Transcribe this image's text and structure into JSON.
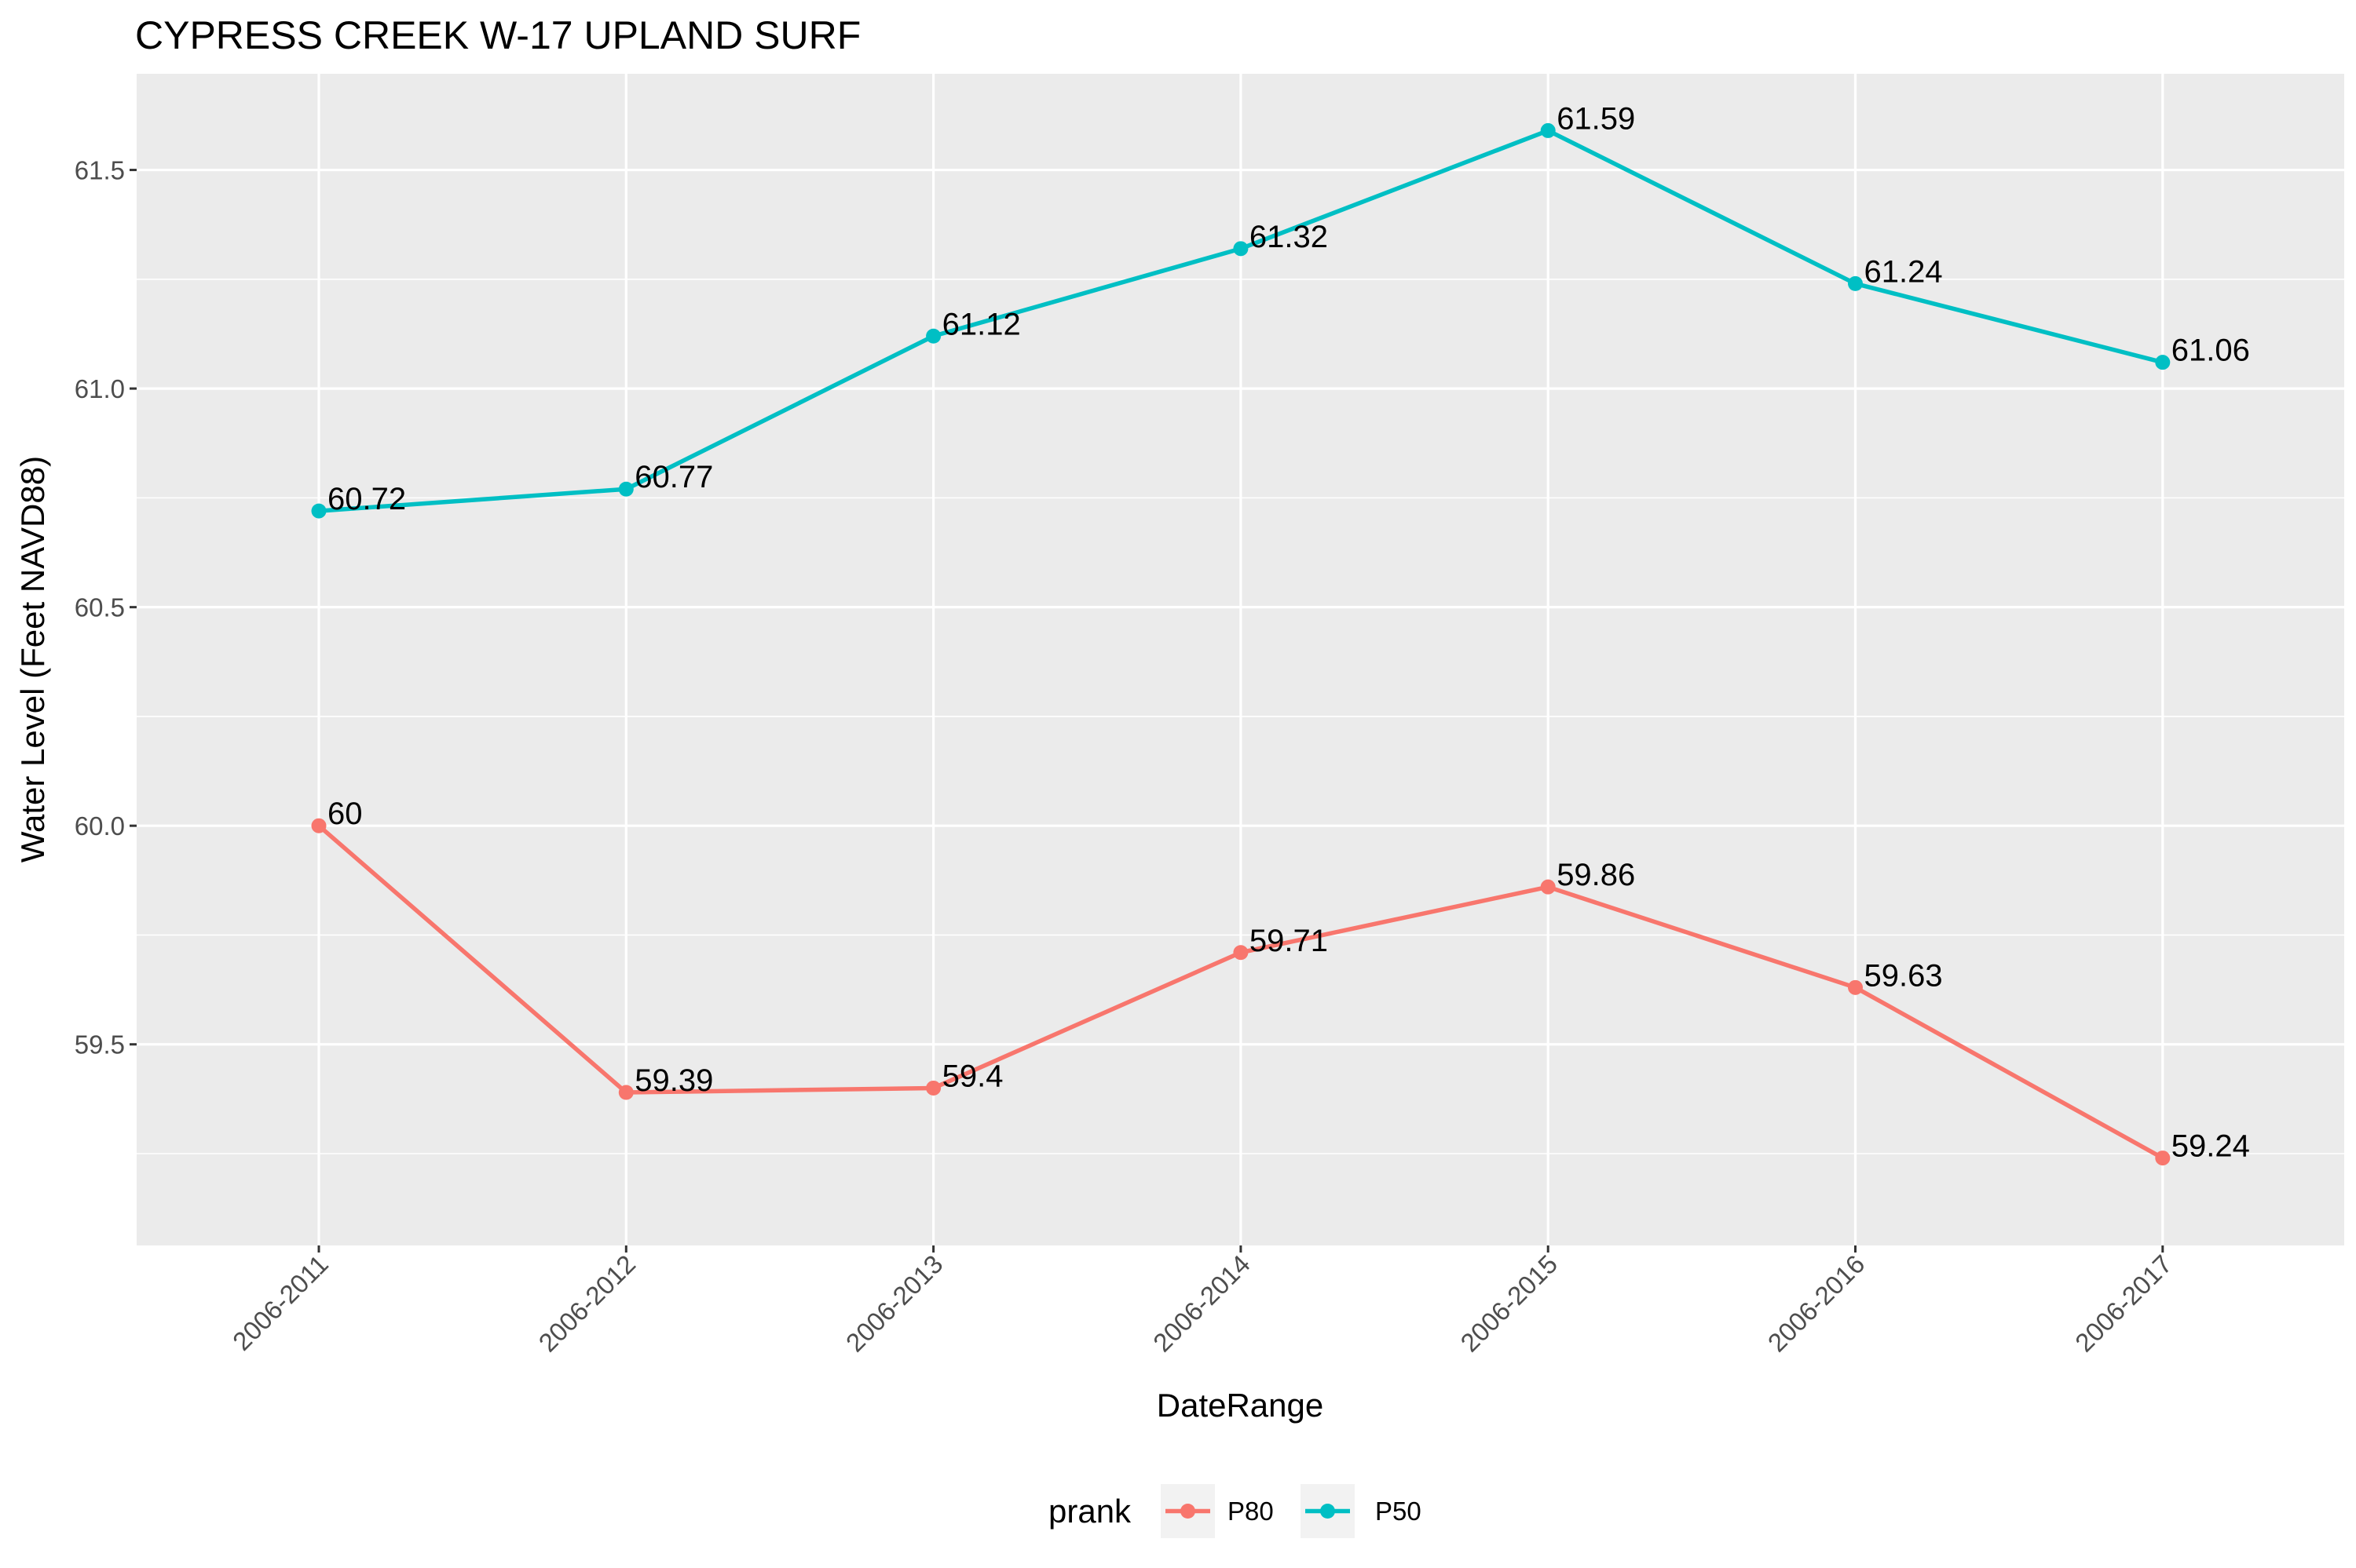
{
  "chart_data": {
    "type": "line",
    "title": "CYPRESS CREEK W-17 UPLAND SURF",
    "xlabel": "DateRange",
    "ylabel": "Water Level (Feet NAVD88)",
    "categories": [
      "2006-2011",
      "2006-2012",
      "2006-2013",
      "2006-2014",
      "2006-2015",
      "2006-2016",
      "2006-2017"
    ],
    "yticks": [
      "59.5",
      "60.0",
      "60.5",
      "61.0",
      "61.5"
    ],
    "ylim": [
      59.04,
      61.72
    ],
    "grid": true,
    "legend": {
      "title": "prank",
      "placement": "bottom"
    },
    "series": [
      {
        "name": "P80",
        "color": "#F8766D",
        "values": [
          60,
          59.39,
          59.4,
          59.71,
          59.86,
          59.63,
          59.24
        ],
        "labels": [
          "60",
          "59.39",
          "59.4",
          "59.71",
          "59.86",
          "59.63",
          "59.24"
        ]
      },
      {
        "name": "P50",
        "color": "#00BFC4",
        "values": [
          60.72,
          60.77,
          61.12,
          61.32,
          61.59,
          61.24,
          61.06
        ],
        "labels": [
          "60.72",
          "60.77",
          "61.12",
          "61.32",
          "61.59",
          "61.24",
          "61.06"
        ]
      }
    ],
    "colors": {
      "panel": "#EBEBEB",
      "grid": "#FFFFFF",
      "tick_text": "#4D4D4D",
      "tick_mark": "#333333",
      "legend_key": "#F2F2F2"
    }
  }
}
